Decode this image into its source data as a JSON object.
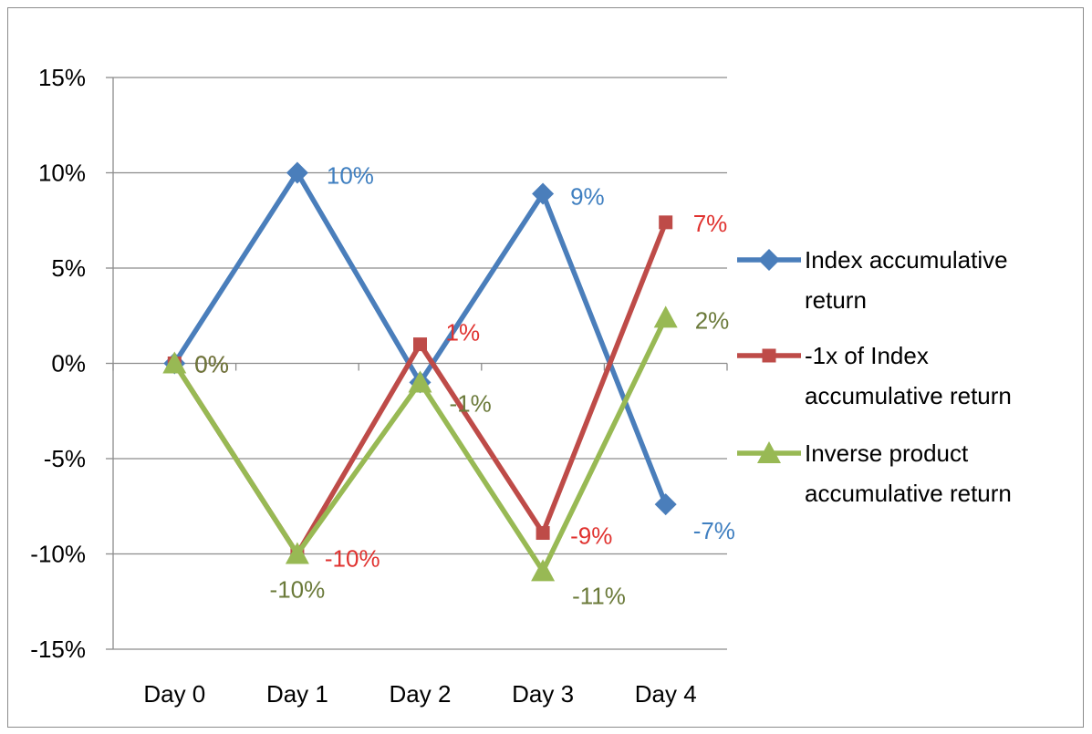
{
  "chart_data": {
    "type": "line",
    "categories": [
      "Day 0",
      "Day 1",
      "Day 2",
      "Day 3",
      "Day 4"
    ],
    "ylim": [
      -15,
      15
    ],
    "yticks": [
      15,
      10,
      5,
      0,
      -5,
      -10,
      -15
    ],
    "ytick_labels": [
      "15%",
      "10%",
      "5%",
      "0%",
      "-5%",
      "-10%",
      "-15%"
    ],
    "grid": true,
    "legend_position": "right",
    "series": [
      {
        "name": "Index accumulative return",
        "legend_lines": [
          "Index accumulative",
          "return"
        ],
        "color": "#4a7ebb",
        "label_color": "#3f7fc0",
        "marker": "diamond",
        "values": [
          0,
          10,
          -1,
          8.9,
          -7.4
        ],
        "labels": [
          "0%",
          "10%",
          "-1%",
          "9%",
          "-7%"
        ]
      },
      {
        "name": "-1x of Index accumulative return",
        "legend_lines": [
          "-1x of Index",
          "accumulative return"
        ],
        "color": "#be4b48",
        "label_color": "#e0322f",
        "marker": "square",
        "values": [
          0,
          -10,
          1,
          -8.9,
          7.4
        ],
        "labels": [
          "0%",
          "-10%",
          "1%",
          "-9%",
          "7%"
        ]
      },
      {
        "name": "Inverse product accumulative return",
        "legend_lines": [
          "Inverse product",
          "accumulative return"
        ],
        "color": "#98b954",
        "label_color": "#6b7a3a",
        "marker": "triangle",
        "values": [
          0,
          -10,
          -1,
          -10.9,
          2.4
        ],
        "labels": [
          "0%",
          "-10%",
          "-1%",
          "-11%",
          "2%"
        ]
      }
    ]
  }
}
